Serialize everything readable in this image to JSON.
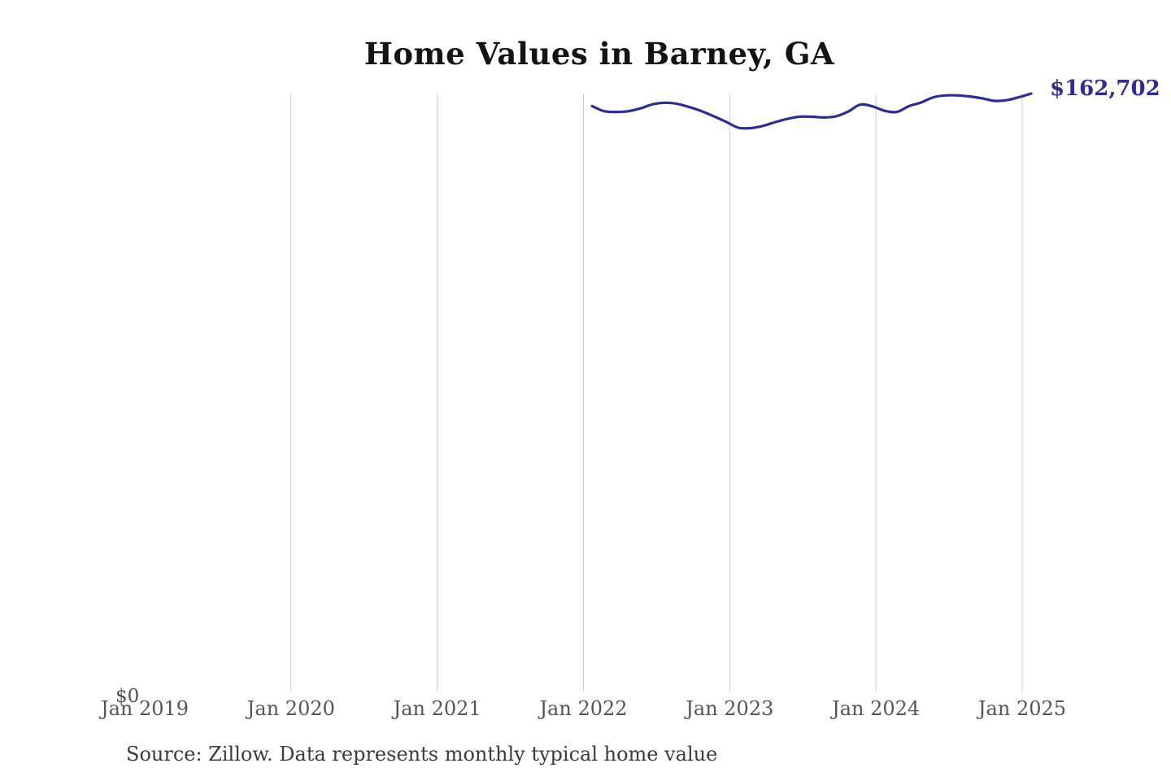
{
  "page": {
    "background": "#ffffff"
  },
  "chart": {
    "title": "Home Values in Barney, GA",
    "latest_value_label": "$162,702",
    "y_zero_label": "$0",
    "source_note": "Source: Zillow. Data represents monthly typical home value",
    "colors": {
      "line": "#2e2e8b",
      "annotation": "#2e2e8b",
      "gridline": "#cbcbcb",
      "tick_label": "#555555",
      "title": "#141414",
      "source": "#3b3b3b"
    }
  },
  "chart_data": {
    "type": "line",
    "title": "Home Values in Barney, GA",
    "xlabel": "",
    "ylabel": "",
    "y_axis": {
      "min": 0,
      "max": 162702,
      "min_label": "$0"
    },
    "grid": "vertical-yearly",
    "legend": "none",
    "annotation": {
      "text": "$162,702",
      "value": 162702,
      "position": "line-end"
    },
    "x_ticks": [
      {
        "label": "Jan 2019",
        "gridline": false
      },
      {
        "label": "Jan 2020",
        "gridline": true
      },
      {
        "label": "Jan 2021",
        "gridline": true
      },
      {
        "label": "Jan 2022",
        "gridline": true
      },
      {
        "label": "Jan 2023",
        "gridline": true
      },
      {
        "label": "Jan 2024",
        "gridline": true
      },
      {
        "label": "Jan 2025",
        "gridline": true
      }
    ],
    "series": [
      {
        "name": "Monthly typical home value",
        "months": [
          "Jan 2022",
          "Feb 2022",
          "Mar 2022",
          "Apr 2022",
          "May 2022",
          "Jun 2022",
          "Jul 2022",
          "Aug 2022",
          "Sep 2022",
          "Oct 2022",
          "Nov 2022",
          "Dec 2022",
          "Jan 2023",
          "Feb 2023",
          "Mar 2023",
          "Apr 2023",
          "May 2023",
          "Jun 2023",
          "Jul 2023",
          "Aug 2023",
          "Sep 2023",
          "Oct 2023",
          "Nov 2023",
          "Dec 2023",
          "Jan 2024",
          "Feb 2024",
          "Mar 2024",
          "Apr 2024",
          "May 2024",
          "Jun 2024",
          "Jul 2024",
          "Aug 2024",
          "Sep 2024",
          "Oct 2024",
          "Nov 2024",
          "Dec 2024",
          "Jan 2025"
        ],
        "values": [
          159300,
          157900,
          157700,
          157900,
          158700,
          159800,
          160200,
          159900,
          159000,
          157900,
          156500,
          155000,
          153400,
          153300,
          153900,
          154900,
          155800,
          156400,
          156400,
          156200,
          156500,
          157800,
          159700,
          159200,
          158000,
          157700,
          159300,
          160300,
          161700,
          162200,
          162200,
          161900,
          161400,
          160700,
          160900,
          161700,
          162702
        ]
      }
    ]
  }
}
